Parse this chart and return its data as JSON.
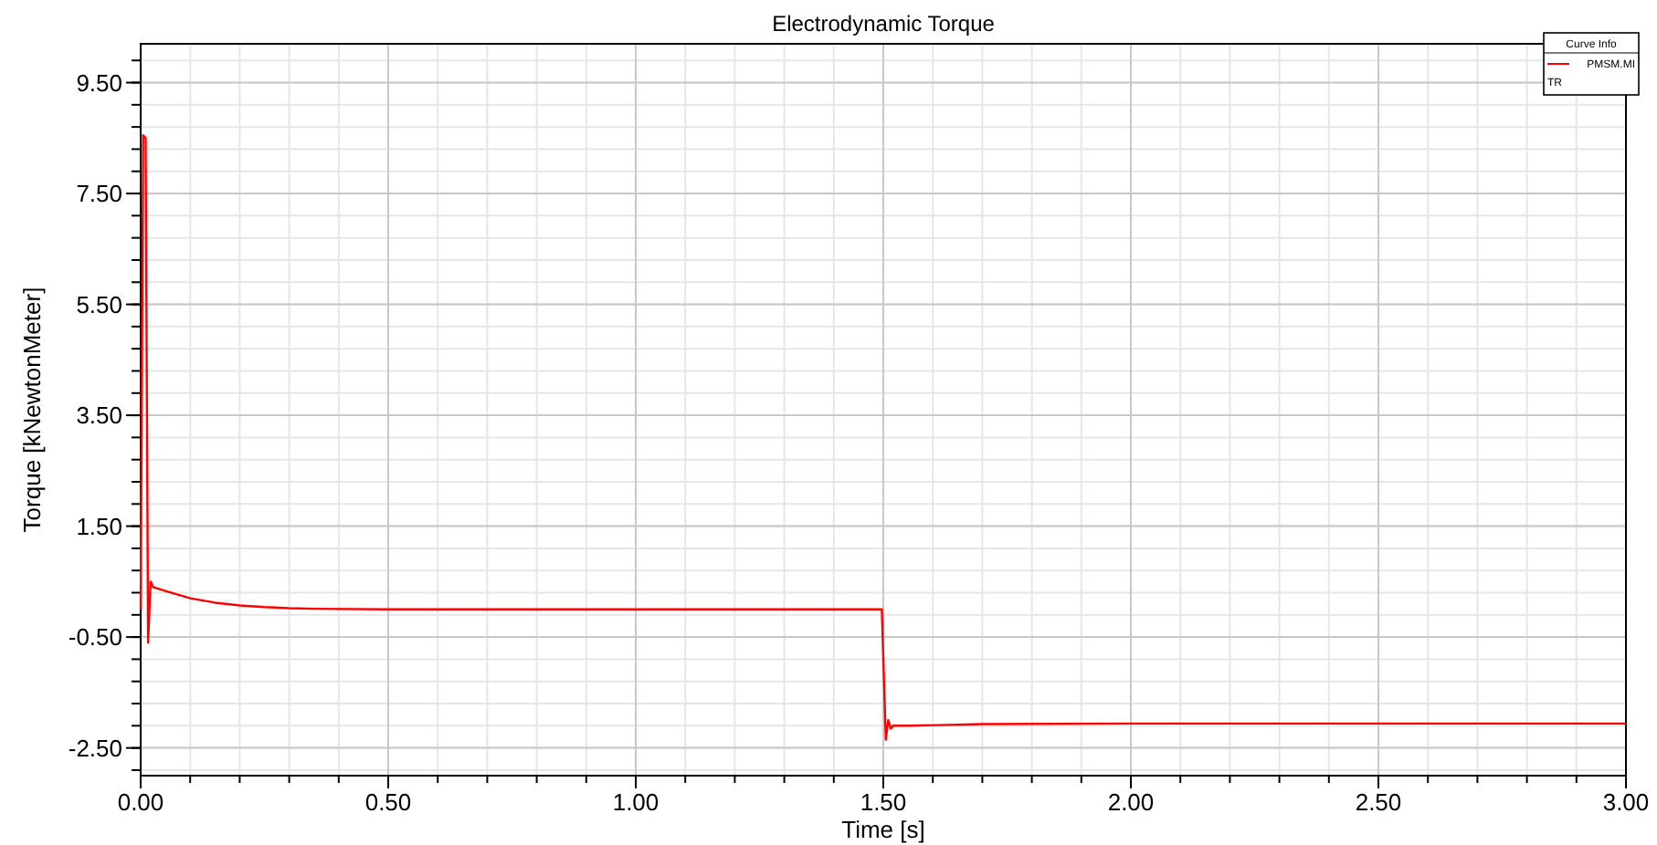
{
  "chart_data": {
    "type": "line",
    "title": "Electrodynamic Torque",
    "xlabel": "Time [s]",
    "ylabel": "Torque [kNewtonMeter]",
    "legend_title": "Curve Info",
    "legend": "top right",
    "grid": true,
    "xlim": [
      0,
      3
    ],
    "ylim": [
      -3.0,
      10.2
    ],
    "xticks": [
      {
        "value": 0,
        "label": "0.00"
      },
      {
        "value": 0.5,
        "label": "0.50"
      },
      {
        "value": 1,
        "label": "1.00"
      },
      {
        "value": 1.5,
        "label": "1.50"
      },
      {
        "value": 2,
        "label": "2.00"
      },
      {
        "value": 2.5,
        "label": "2.50"
      },
      {
        "value": 3,
        "label": "3.00"
      }
    ],
    "yticks": [
      {
        "value": -2.5,
        "label": "-2.50"
      },
      {
        "value": -0.5,
        "label": "-0.50"
      },
      {
        "value": 1.5,
        "label": "1.50"
      },
      {
        "value": 3.5,
        "label": "3.50"
      },
      {
        "value": 5.5,
        "label": "5.50"
      },
      {
        "value": 7.5,
        "label": "7.50"
      },
      {
        "value": 9.5,
        "label": "9.50"
      }
    ],
    "annotations": [
      "TR"
    ],
    "series": [
      {
        "name": "PMSM.MI",
        "color": "#ff0000",
        "x": [
          0,
          0.005,
          0.01,
          0.015,
          0.02,
          0.025,
          0.05,
          0.1,
          0.15,
          0.2,
          0.25,
          0.3,
          0.35,
          0.5,
          1.0,
          1.497,
          1.505,
          1.51,
          1.515,
          1.52,
          1.55,
          1.7,
          2.0,
          3.0
        ],
        "values": [
          0,
          8.55,
          8.5,
          -0.6,
          0.5,
          0.4,
          0.33,
          0.2,
          0.12,
          0.07,
          0.04,
          0.02,
          0.01,
          0.0,
          0.0,
          0.0,
          -2.35,
          -2.0,
          -2.15,
          -2.1,
          -2.1,
          -2.07,
          -2.06,
          -2.06
        ]
      }
    ]
  }
}
